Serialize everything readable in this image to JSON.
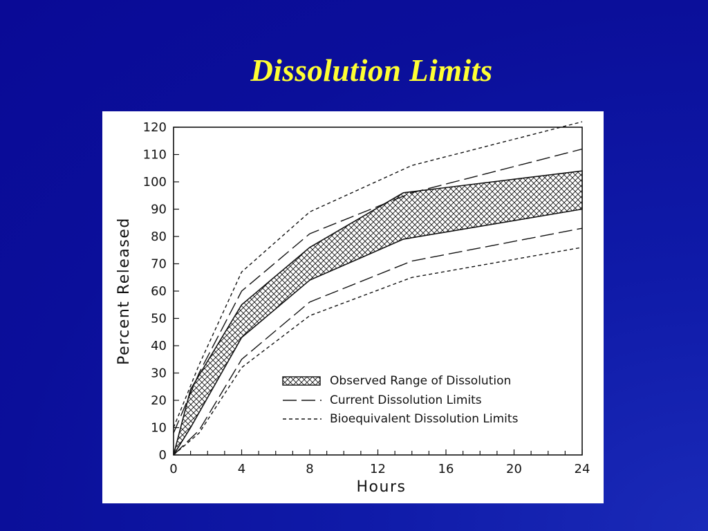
{
  "slide": {
    "title": "Dissolution Limits"
  },
  "colors": {
    "background": "#0b0f9a",
    "title": "#ffff33",
    "chart_background": "#ffffff",
    "ink": "#111111"
  },
  "chart_data": {
    "type": "area",
    "title": "",
    "xlabel": "Hours",
    "ylabel": "Percent Released",
    "xlim": [
      0,
      24
    ],
    "ylim": [
      0,
      120
    ],
    "x_ticks": [
      0,
      4,
      8,
      12,
      16,
      20,
      24
    ],
    "y_ticks": [
      0,
      10,
      20,
      30,
      40,
      50,
      60,
      70,
      80,
      90,
      100,
      110,
      120
    ],
    "grid": false,
    "legend_position": "bottom-right",
    "band": {
      "name": "Observed Range of Dissolution",
      "x": [
        0,
        1,
        4,
        8,
        13.5,
        24
      ],
      "lower": [
        0,
        10,
        43,
        64,
        79,
        90
      ],
      "upper": [
        0,
        24,
        55,
        76,
        96,
        104
      ]
    },
    "series": [
      {
        "name": "Current Dissolution Limits",
        "style": "long-dash",
        "x": [
          0,
          1.5,
          4,
          8,
          14,
          24
        ],
        "values": [
          8,
          30,
          60,
          81,
          96,
          112
        ]
      },
      {
        "name": "Current Dissolution Limits",
        "style": "long-dash",
        "x": [
          0,
          1.5,
          4,
          8,
          14,
          24
        ],
        "values": [
          0,
          9,
          35,
          56,
          71,
          83
        ]
      },
      {
        "name": "Bioequivalent Dissolution Limits",
        "style": "short-dash",
        "x": [
          0,
          1.5,
          4,
          8,
          14,
          24
        ],
        "values": [
          10,
          33,
          67,
          89,
          106,
          122
        ]
      },
      {
        "name": "Bioequivalent Dissolution Limits",
        "style": "short-dash",
        "x": [
          0,
          1.5,
          4,
          8,
          14,
          24
        ],
        "values": [
          0,
          8,
          32,
          51,
          65,
          76
        ]
      }
    ],
    "legend": [
      {
        "label": "Observed Range of Dissolution",
        "style": "hatch"
      },
      {
        "label": "Current Dissolution Limits",
        "style": "long-dash"
      },
      {
        "label": "Bioequivalent Dissolution Limits",
        "style": "short-dash"
      }
    ]
  }
}
